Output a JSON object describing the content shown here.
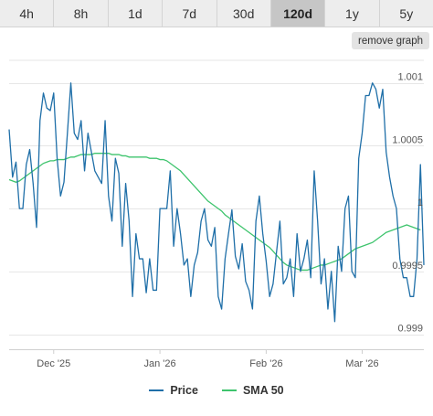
{
  "tabs": [
    {
      "label": "4h",
      "active": false
    },
    {
      "label": "8h",
      "active": false
    },
    {
      "label": "1d",
      "active": false
    },
    {
      "label": "7d",
      "active": false
    },
    {
      "label": "30d",
      "active": false
    },
    {
      "label": "120d",
      "active": true
    },
    {
      "label": "1y",
      "active": false
    },
    {
      "label": "5y",
      "active": false
    }
  ],
  "remove_graph_label": "remove graph",
  "colors": {
    "price": "#1f6fa8",
    "sma": "#3ec46d",
    "grid": "#e6e6e6",
    "axis_text": "#555555"
  },
  "chart_data": {
    "type": "line",
    "title": "",
    "xlabel": "",
    "ylabel": "",
    "x_ticks": [
      "Dec '25",
      "Jan '26",
      "Feb '26",
      "Mar '26"
    ],
    "x_tick_index": [
      13,
      44,
      75,
      103
    ],
    "y_ticks": [
      0.999,
      0.9995,
      1,
      1.0005,
      1.001
    ],
    "y_tick_labels": [
      "0.999",
      "0.9995",
      "1",
      "1.0005",
      "1.001"
    ],
    "ylim": [
      0.99888,
      1.00118
    ],
    "grid": true,
    "legend_position": "bottom",
    "series": [
      {
        "name": "Price",
        "values": [
          1.00063,
          1.00025,
          1.00037,
          1.0,
          1.0,
          1.00035,
          1.00047,
          1.0002,
          0.99985,
          1.0007,
          1.00092,
          1.0008,
          1.00078,
          1.00092,
          1.0004,
          1.0001,
          1.00021,
          1.0006,
          1.001,
          1.0006,
          1.00055,
          1.0007,
          1.0003,
          1.0006,
          1.00045,
          1.0003,
          1.00025,
          1.0002,
          1.0007,
          1.0001,
          0.9999,
          1.0004,
          1.00028,
          0.9997,
          1.0002,
          0.9999,
          0.9993,
          0.9998,
          0.9996,
          0.9996,
          0.99933,
          0.9996,
          0.99935,
          0.99935,
          1.0,
          1.0,
          1.0,
          1.0003,
          0.9997,
          1.0,
          0.9998,
          0.99955,
          0.9996,
          0.9993,
          0.99955,
          0.99965,
          0.9999,
          1.0,
          0.99975,
          0.9997,
          0.99985,
          0.9993,
          0.9992,
          0.9996,
          0.9998,
          0.99999,
          0.99962,
          0.99952,
          0.99972,
          0.99942,
          0.99935,
          0.9992,
          0.9999,
          1.0001,
          0.9998,
          0.99958,
          0.9993,
          0.9994,
          0.99965,
          0.9999,
          0.9994,
          0.99945,
          0.9996,
          0.9993,
          0.9998,
          0.9995,
          0.9996,
          0.99975,
          0.99945,
          1.0003,
          0.9999,
          0.9994,
          0.9996,
          0.9992,
          0.9995,
          0.9991,
          0.9997,
          0.9995,
          1.0,
          1.0001,
          0.9995,
          0.99945,
          1.0004,
          1.0006,
          1.0009,
          1.0009,
          1.001,
          1.00095,
          1.0008,
          1.00095,
          1.00045,
          1.00025,
          1.0001,
          1.0,
          0.9996,
          0.99945,
          0.99945,
          0.9993,
          0.9993,
          0.9996,
          1.00035,
          0.99955
        ]
      },
      {
        "name": "SMA 50",
        "values": [
          1.00023,
          1.00022,
          1.00021,
          1.00022,
          1.00024,
          1.00026,
          1.00028,
          1.0003,
          1.00032,
          1.00034,
          1.00036,
          1.00037,
          1.00038,
          1.00038,
          1.00039,
          1.00039,
          1.00039,
          1.0004,
          1.00041,
          1.00041,
          1.00042,
          1.00043,
          1.00043,
          1.00043,
          1.00043,
          1.00044,
          1.00044,
          1.00044,
          1.00044,
          1.00044,
          1.00043,
          1.00043,
          1.00043,
          1.00042,
          1.00042,
          1.00041,
          1.00041,
          1.00041,
          1.00041,
          1.00041,
          1.00041,
          1.0004,
          1.0004,
          1.0004,
          1.00039,
          1.00039,
          1.00038,
          1.00036,
          1.00034,
          1.00032,
          1.0003,
          1.00027,
          1.00024,
          1.00021,
          1.00018,
          1.00015,
          1.00012,
          1.00009,
          1.00006,
          1.00004,
          1.00002,
          1.0,
          0.99998,
          0.99995,
          0.99993,
          0.99991,
          0.99989,
          0.99987,
          0.99985,
          0.99983,
          0.99981,
          0.99979,
          0.99977,
          0.99975,
          0.99973,
          0.99971,
          0.99969,
          0.99966,
          0.99963,
          0.9996,
          0.99957,
          0.99955,
          0.99954,
          0.99953,
          0.99952,
          0.99951,
          0.99951,
          0.99951,
          0.99952,
          0.99953,
          0.99954,
          0.99955,
          0.99955,
          0.99956,
          0.99957,
          0.99958,
          0.99959,
          0.9996,
          0.99962,
          0.99964,
          0.99966,
          0.99968,
          0.99969,
          0.9997,
          0.99971,
          0.99972,
          0.99973,
          0.99975,
          0.99977,
          0.99979,
          0.99981,
          0.99982,
          0.99983,
          0.99984,
          0.99985,
          0.99986,
          0.99987,
          0.99986,
          0.99985,
          0.99984,
          0.99983
        ]
      }
    ]
  }
}
